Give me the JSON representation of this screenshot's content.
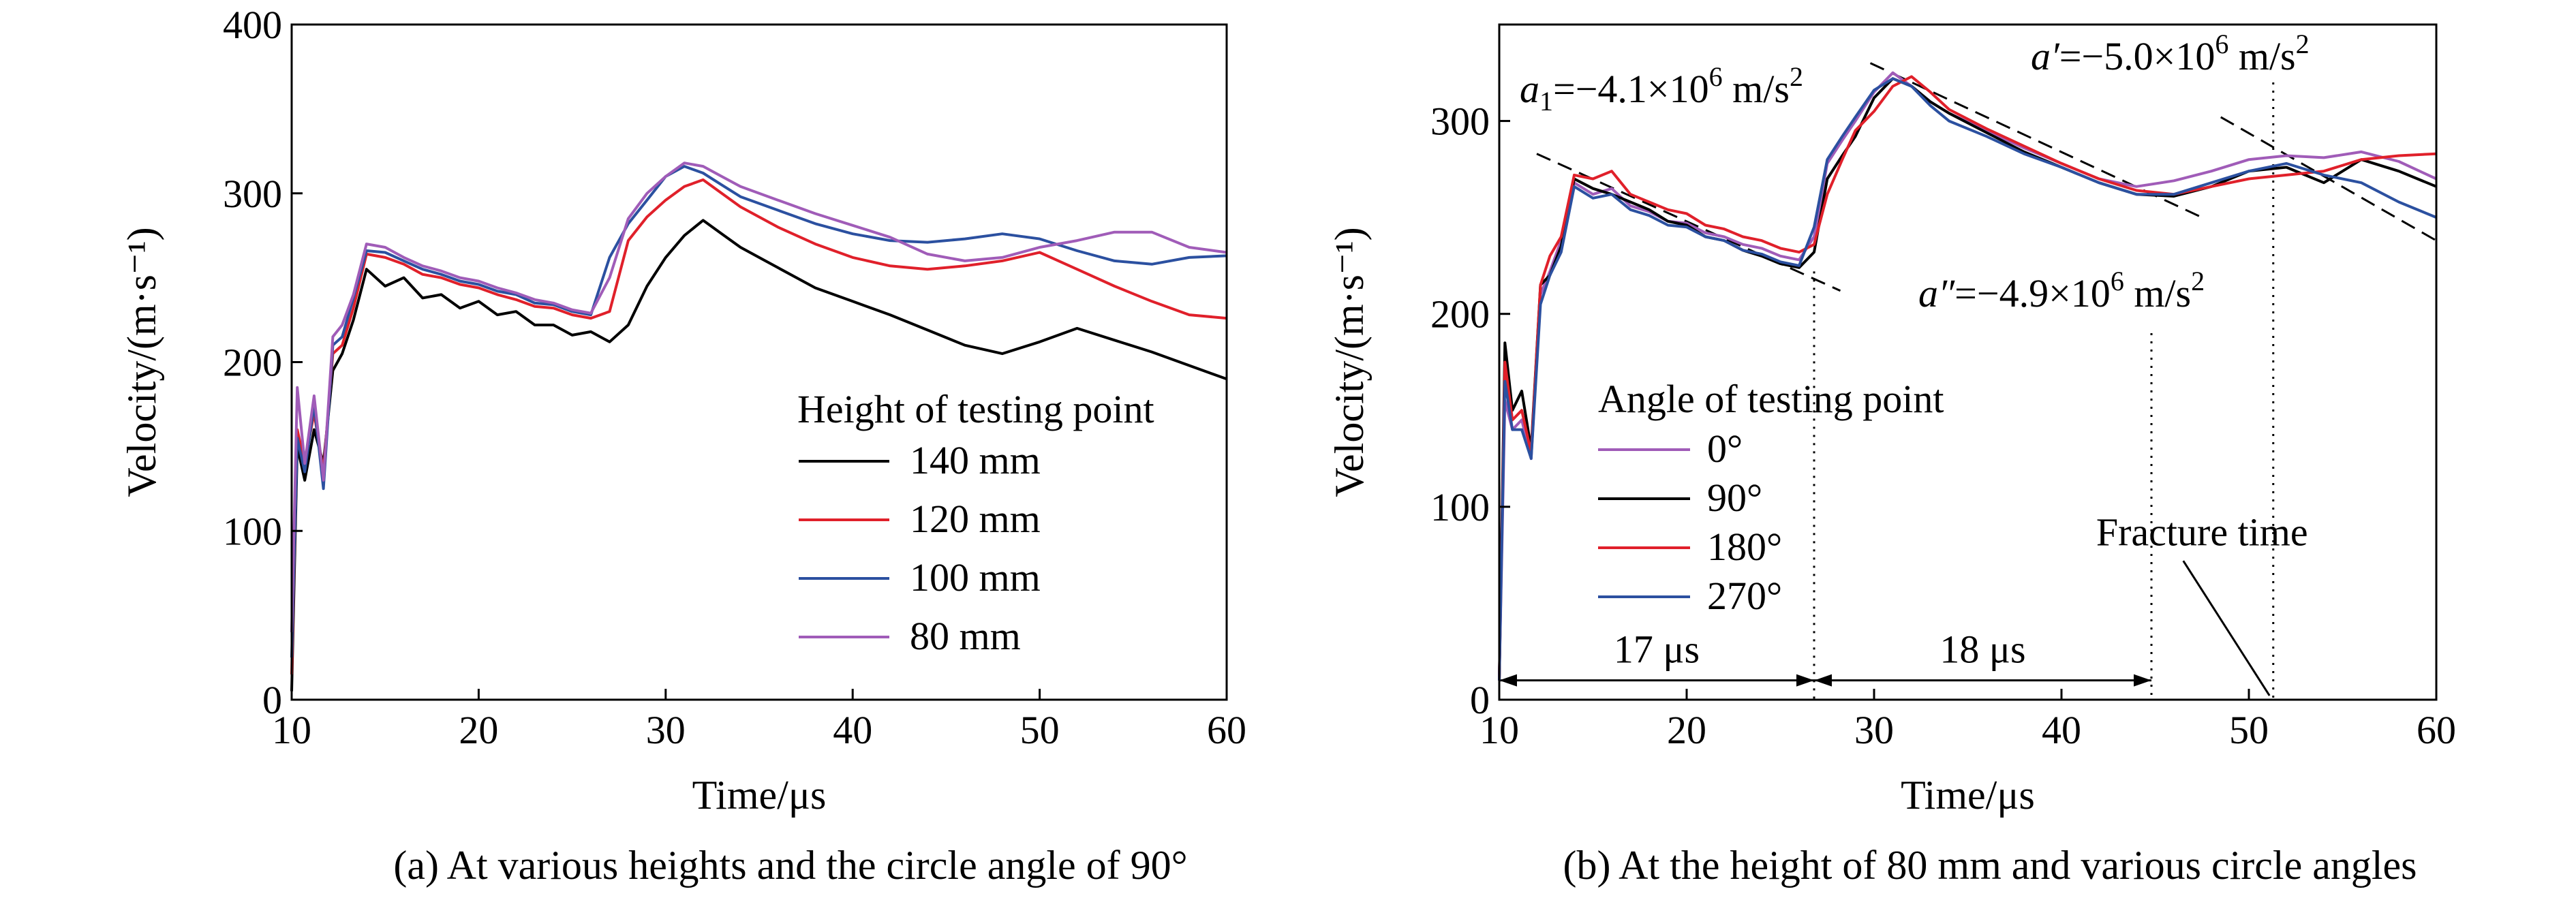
{
  "chart_data": [
    {
      "type": "line",
      "caption": "(a) At various heights and the circle angle of 90°",
      "xlabel": "Time/μs",
      "ylabel": "Velocity/(m·s⁻¹)",
      "xlim": [
        10,
        60
      ],
      "ylim": [
        0,
        400
      ],
      "xticks": [
        10,
        20,
        30,
        40,
        50,
        60
      ],
      "yticks": [
        0,
        100,
        200,
        300,
        400
      ],
      "grid": false,
      "legend": {
        "title": "Height of testing point",
        "position": "right"
      },
      "series": [
        {
          "name": "140 mm",
          "color": "#000000",
          "x": [
            10,
            10.3,
            10.7,
            11.2,
            11.7,
            12.2,
            12.7,
            13.3,
            14,
            15,
            16,
            17,
            18,
            19,
            20,
            21,
            22,
            23,
            24,
            25,
            26,
            27,
            28,
            29,
            30,
            31,
            32,
            33,
            34,
            36,
            38,
            40,
            42,
            44,
            46,
            48,
            50,
            52,
            54,
            56,
            58,
            60
          ],
          "y": [
            5,
            150,
            130,
            160,
            140,
            195,
            205,
            225,
            255,
            245,
            250,
            238,
            240,
            232,
            236,
            228,
            230,
            222,
            222,
            216,
            218,
            212,
            222,
            245,
            262,
            275,
            284,
            276,
            268,
            256,
            244,
            236,
            228,
            219,
            210,
            205,
            212,
            220,
            213,
            206,
            198,
            190
          ]
        },
        {
          "name": "120 mm",
          "color": "#e0202a",
          "x": [
            10,
            10.3,
            10.7,
            11.2,
            11.7,
            12.2,
            12.7,
            13.3,
            14,
            15,
            16,
            17,
            18,
            19,
            20,
            21,
            22,
            23,
            24,
            25,
            26,
            27,
            28,
            29,
            30,
            31,
            32,
            33,
            34,
            36,
            38,
            40,
            42,
            44,
            46,
            48,
            50,
            52,
            54,
            56,
            58,
            60
          ],
          "y": [
            15,
            160,
            140,
            170,
            135,
            205,
            210,
            232,
            264,
            262,
            258,
            252,
            250,
            246,
            244,
            240,
            237,
            233,
            232,
            228,
            226,
            230,
            272,
            286,
            296,
            304,
            308,
            300,
            292,
            280,
            270,
            262,
            257,
            255,
            257,
            260,
            265,
            255,
            245,
            236,
            228,
            226
          ]
        },
        {
          "name": "100 mm",
          "color": "#2b50a0",
          "x": [
            10,
            10.3,
            10.7,
            11.2,
            11.7,
            12.2,
            12.7,
            13.3,
            14,
            15,
            16,
            17,
            18,
            19,
            20,
            21,
            22,
            23,
            24,
            25,
            26,
            27,
            28,
            29,
            30,
            31,
            32,
            33,
            34,
            36,
            38,
            40,
            42,
            44,
            46,
            48,
            50,
            52,
            54,
            56,
            58,
            60
          ],
          "y": [
            25,
            155,
            135,
            175,
            125,
            210,
            215,
            238,
            266,
            265,
            260,
            255,
            252,
            248,
            246,
            242,
            240,
            235,
            234,
            230,
            228,
            262,
            282,
            296,
            310,
            316,
            312,
            305,
            298,
            290,
            282,
            276,
            272,
            271,
            273,
            276,
            273,
            266,
            260,
            258,
            262,
            263
          ]
        },
        {
          "name": "80 mm",
          "color": "#a05cb8",
          "x": [
            10,
            10.3,
            10.7,
            11.2,
            11.7,
            12.2,
            12.7,
            13.3,
            14,
            15,
            16,
            17,
            18,
            19,
            20,
            21,
            22,
            23,
            24,
            25,
            26,
            27,
            28,
            29,
            30,
            31,
            32,
            33,
            34,
            36,
            38,
            40,
            42,
            44,
            46,
            48,
            50,
            52,
            54,
            56,
            58,
            60
          ],
          "y": [
            40,
            185,
            140,
            180,
            130,
            215,
            222,
            240,
            270,
            268,
            262,
            257,
            254,
            250,
            248,
            244,
            241,
            237,
            235,
            231,
            229,
            250,
            285,
            300,
            310,
            318,
            316,
            310,
            304,
            296,
            288,
            281,
            274,
            264,
            260,
            262,
            268,
            272,
            277,
            277,
            268,
            265
          ]
        }
      ]
    },
    {
      "type": "line",
      "caption": "(b) At the height of 80 mm and various circle angles",
      "xlabel": "Time/μs",
      "ylabel": "Velocity/(m·s⁻¹)",
      "xlim": [
        10,
        60
      ],
      "ylim": [
        0,
        350
      ],
      "xticks": [
        10,
        20,
        30,
        40,
        50,
        60
      ],
      "yticks": [
        0,
        100,
        200,
        300
      ],
      "grid": false,
      "legend": {
        "title": "Angle of testing point",
        "position": "left"
      },
      "series": [
        {
          "name": "0°",
          "color": "#a05cb8",
          "x": [
            10,
            10.3,
            10.7,
            11.2,
            11.7,
            12.2,
            12.7,
            13.3,
            14,
            15,
            16,
            17,
            18,
            19,
            20,
            21,
            22,
            23,
            24,
            25,
            26,
            26.8,
            27.5,
            28.3,
            29,
            30,
            31,
            32,
            33,
            34,
            36,
            38,
            40,
            42,
            44,
            46,
            48,
            50,
            52,
            54,
            56,
            58,
            60
          ],
          "y": [
            10,
            155,
            140,
            145,
            125,
            210,
            222,
            238,
            268,
            262,
            265,
            256,
            253,
            248,
            247,
            242,
            240,
            236,
            234,
            230,
            228,
            240,
            278,
            290,
            300,
            315,
            325,
            318,
            310,
            304,
            295,
            286,
            278,
            270,
            266,
            269,
            274,
            280,
            282,
            281,
            284,
            279,
            270
          ]
        },
        {
          "name": "90°",
          "color": "#000000",
          "x": [
            10,
            10.3,
            10.7,
            11.2,
            11.7,
            12.2,
            12.7,
            13.3,
            14,
            15,
            16,
            17,
            18,
            19,
            20,
            21,
            22,
            23,
            24,
            25,
            26,
            26.8,
            27.5,
            28.3,
            29,
            30,
            31,
            32,
            33,
            34,
            36,
            38,
            40,
            42,
            44,
            46,
            48,
            50,
            52,
            54,
            56,
            58,
            60
          ],
          "y": [
            10,
            185,
            150,
            160,
            130,
            215,
            220,
            235,
            270,
            265,
            262,
            258,
            254,
            248,
            246,
            240,
            238,
            233,
            230,
            226,
            224,
            232,
            270,
            282,
            292,
            312,
            322,
            318,
            310,
            304,
            294,
            284,
            276,
            268,
            262,
            261,
            266,
            274,
            276,
            268,
            280,
            274,
            266
          ]
        },
        {
          "name": "180°",
          "color": "#e0202a",
          "x": [
            10,
            10.3,
            10.7,
            11.2,
            11.7,
            12.2,
            12.7,
            13.3,
            14,
            15,
            16,
            17,
            18,
            19,
            20,
            21,
            22,
            23,
            24,
            25,
            26,
            26.8,
            27.5,
            28.3,
            29,
            30,
            31,
            32,
            33,
            34,
            36,
            38,
            40,
            42,
            44,
            46,
            48,
            50,
            52,
            54,
            56,
            58,
            60
          ],
          "y": [
            10,
            175,
            145,
            150,
            128,
            215,
            230,
            240,
            272,
            270,
            274,
            262,
            258,
            254,
            252,
            246,
            244,
            240,
            238,
            234,
            232,
            236,
            262,
            280,
            295,
            305,
            318,
            323,
            315,
            306,
            296,
            287,
            278,
            270,
            264,
            262,
            266,
            270,
            272,
            274,
            280,
            282,
            283
          ]
        },
        {
          "name": "270°",
          "color": "#2b50a0",
          "x": [
            10,
            10.3,
            10.7,
            11.2,
            11.7,
            12.2,
            12.7,
            13.3,
            14,
            15,
            16,
            17,
            18,
            19,
            20,
            21,
            22,
            23,
            24,
            25,
            26,
            26.8,
            27.5,
            28.3,
            29,
            30,
            31,
            32,
            33,
            34,
            36,
            38,
            40,
            42,
            44,
            46,
            48,
            50,
            52,
            54,
            56,
            58,
            60
          ],
          "y": [
            10,
            165,
            140,
            140,
            125,
            205,
            220,
            232,
            266,
            260,
            262,
            254,
            251,
            246,
            245,
            240,
            238,
            233,
            231,
            227,
            225,
            245,
            280,
            292,
            302,
            316,
            322,
            318,
            308,
            300,
            292,
            283,
            276,
            268,
            262,
            262,
            268,
            274,
            278,
            272,
            268,
            258,
            250
          ]
        }
      ],
      "annotations": {
        "a1_prefix": "a",
        "a1_sub": "1",
        "a1_mid": "=−4.1×10",
        "a1_exp": "6",
        "a1_unit": " m/s",
        "a1_unit_exp": "2",
        "ap_prefix": "a′",
        "ap_mid": "=−5.0×10",
        "ap_exp": "6",
        "ap_unit": " m/s",
        "ap_unit_exp": "2",
        "app_prefix": "a″",
        "app_mid": "=−4.9×10",
        "app_exp": "6",
        "app_unit": " m/s",
        "app_unit_exp": "2",
        "interval1": "17 μs",
        "interval2": "18 μs",
        "fracture": "Fracture time",
        "interval_times": [
          10,
          26.8,
          44.8
        ],
        "fracture_time": 51.3
      }
    }
  ]
}
